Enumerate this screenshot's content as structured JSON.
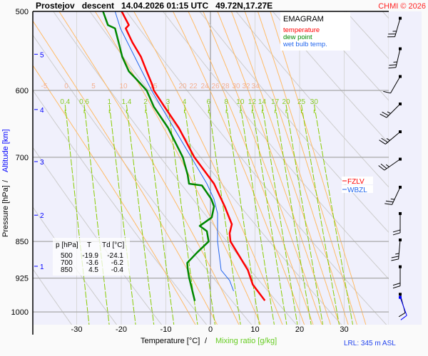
{
  "header": {
    "title": "Prostejov   descent   14.04.2026 01:15 UTC   49.72N,17.27E",
    "copyright": "CHMI © 2026"
  },
  "legend": {
    "title": "EMAGRAM",
    "temperature": "temperature",
    "dew_point": "dew point",
    "wet_bulb": "wet bulb temp.",
    "fzlv": "FZLV",
    "wbzl": "WBZL"
  },
  "table": {
    "headers": [
      "p [hPa]",
      "T",
      "Td [°C]"
    ],
    "rows": [
      [
        "500",
        "-19.9",
        "-24.1"
      ],
      [
        "700",
        "-3.6",
        "-6.2"
      ],
      [
        "850",
        "4.5",
        "-0.4"
      ]
    ]
  },
  "footer": {
    "lrl": "LRL: 345 m ASL"
  },
  "colors": {
    "temperature": "#ff0000",
    "dew_point": "#008800",
    "wet_bulb": "#2266ee",
    "moist_adiabat": "#ffbb66",
    "mixing_ratio": "#88cc00",
    "dry_adiabat": "#cccccc",
    "plot_bg": "#f0f0fc",
    "altitude": "#0000ff"
  },
  "chart_data": {
    "type": "line",
    "title": "EMAGRAM",
    "xlabel": "Temperature [°C]",
    "xlabel_sep": "/",
    "xlabel2": "Mixing ratio [g/kg]",
    "ylabel": "Pressure [hPa]",
    "ylabel_sep": "/",
    "ylabel2": "Altitude [km]",
    "xlim": [
      -30,
      30
    ],
    "ylim": [
      1029,
      500
    ],
    "x_ticks": [
      "-30",
      "-20",
      "-10",
      "0",
      "10",
      "20",
      "30"
    ],
    "y_ticks": [
      "500",
      "600",
      "700",
      "850",
      "925",
      "1000"
    ],
    "altitude_ticks": [
      {
        "label": "5",
        "p": 552
      },
      {
        "label": "4",
        "p": 627
      },
      {
        "label": "3",
        "p": 707
      },
      {
        "label": "2",
        "p": 800
      },
      {
        "label": "1",
        "p": 900
      }
    ],
    "moist_adiabat_labels": [
      "-5",
      "0",
      "5",
      "10",
      "15",
      "20",
      "22",
      "24",
      "26",
      "28",
      "30",
      "32",
      "34"
    ],
    "mixing_ratio_labels": [
      "0.4",
      "0.6",
      "1",
      "1.4",
      "2",
      "3",
      "4",
      "6",
      "8",
      "10",
      "12",
      "14",
      "17",
      "20",
      "25",
      "30"
    ],
    "series": [
      {
        "name": "temperature",
        "points": [
          [
            500,
            -19.9
          ],
          [
            516,
            -18.3
          ],
          [
            520,
            -19.0
          ],
          [
            537,
            -17.5
          ],
          [
            555,
            -15.6
          ],
          [
            574,
            -14.3
          ],
          [
            593,
            -13.0
          ],
          [
            600,
            -12.7
          ],
          [
            623,
            -10.3
          ],
          [
            654,
            -7.1
          ],
          [
            700,
            -3.6
          ],
          [
            744,
            0.8
          ],
          [
            784,
            3.2
          ],
          [
            817,
            4.8
          ],
          [
            834,
            4.3
          ],
          [
            850,
            4.5
          ],
          [
            872,
            6.0
          ],
          [
            908,
            8.4
          ],
          [
            939,
            9.5
          ],
          [
            974,
            12.2
          ]
        ]
      },
      {
        "name": "dew point",
        "points": [
          [
            500,
            -24.1
          ],
          [
            516,
            -23.0
          ],
          [
            520,
            -21.4
          ],
          [
            537,
            -20.6
          ],
          [
            555,
            -19.8
          ],
          [
            574,
            -18.3
          ],
          [
            584,
            -16.7
          ],
          [
            600,
            -14.3
          ],
          [
            623,
            -12.7
          ],
          [
            654,
            -9.5
          ],
          [
            700,
            -6.2
          ],
          [
            729,
            -5.1
          ],
          [
            744,
            -4.8
          ],
          [
            747,
            -1.9
          ],
          [
            771,
            0.2
          ],
          [
            784,
            0.8
          ],
          [
            804,
            0.3
          ],
          [
            820,
            -2.4
          ],
          [
            830,
            -0.8
          ],
          [
            850,
            -0.4
          ],
          [
            872,
            -3.0
          ],
          [
            893,
            -5.2
          ],
          [
            905,
            -5.1
          ],
          [
            923,
            -4.8
          ],
          [
            975,
            -3.5
          ]
        ]
      },
      {
        "name": "wet bulb temp.",
        "points": [
          [
            500,
            -21.4
          ],
          [
            520,
            -20.2
          ],
          [
            600,
            -13.2
          ],
          [
            700,
            -4.3
          ],
          [
            744,
            -0.8
          ],
          [
            771,
            0.8
          ],
          [
            797,
            1.6
          ],
          [
            850,
            1.6
          ],
          [
            908,
            2.4
          ],
          [
            930,
            4.3
          ],
          [
            953,
            5.2
          ]
        ]
      }
    ],
    "wind_barbs": [
      {
        "p": 508,
        "dir": 196,
        "kt": 15
      },
      {
        "p": 545,
        "dir": 193,
        "kt": 15
      },
      {
        "p": 581,
        "dir": 210,
        "kt": 10
      },
      {
        "p": 619,
        "dir": 225,
        "kt": 15
      },
      {
        "p": 660,
        "dir": 230,
        "kt": 15
      },
      {
        "p": 703,
        "dir": 235,
        "kt": 15
      },
      {
        "p": 750,
        "dir": 205,
        "kt": 15
      },
      {
        "p": 797,
        "dir": 180,
        "kt": 20
      },
      {
        "p": 847,
        "dir": 185,
        "kt": 15
      },
      {
        "p": 901,
        "dir": 180,
        "kt": 20
      },
      {
        "p": 960,
        "dir": 165,
        "kt": 10
      },
      {
        "p": 967,
        "dir": 160,
        "kt": 10,
        "color": "#0000ff"
      }
    ]
  }
}
